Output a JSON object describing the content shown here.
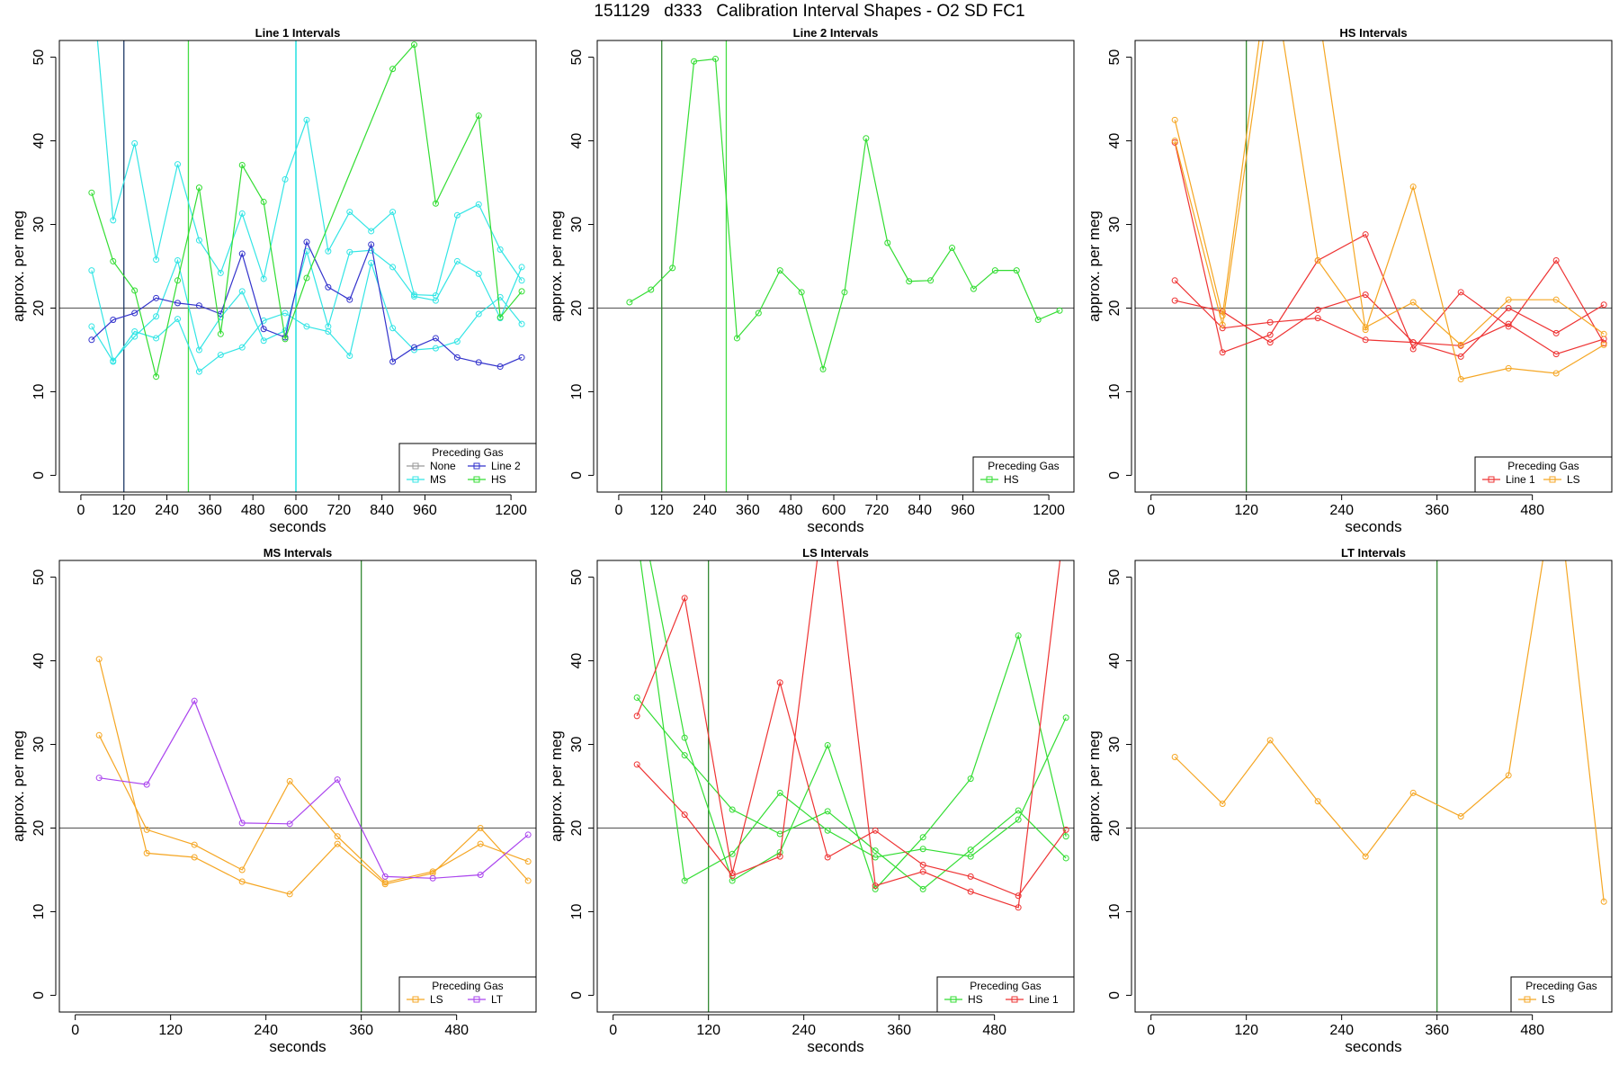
{
  "suptitle": "151129   d333   Calibration Interval Shapes - O2 SD FC1",
  "colors": {
    "None": "#999999",
    "Line 2": "#3333cc",
    "MS": "#33e5e5",
    "HS": "#33dd33",
    "Line 1": "#ee3333",
    "LS": "#f5a623",
    "LT": "#aa44ee",
    "vline_green": "#338833",
    "vline_navy": "#1f3a66",
    "vline_cyan": "#00dddd",
    "vline_lime": "#44dd44",
    "hline": "#666666"
  },
  "chart_data": [
    {
      "type": "line",
      "title": "Line 1 Intervals",
      "xlabel": "seconds",
      "ylabel": "approx. per meg",
      "xlim": [
        -60,
        1270
      ],
      "ylim": [
        -2,
        52
      ],
      "xticks": [
        0,
        120,
        240,
        360,
        480,
        600,
        720,
        840,
        960,
        1200
      ],
      "yticks": [
        0,
        10,
        20,
        30,
        40,
        50
      ],
      "hline": 20,
      "vlines": [
        {
          "x": 120,
          "color": "vline_navy"
        },
        {
          "x": 300,
          "color": "vline_lime"
        },
        {
          "x": 600,
          "color": "vline_cyan"
        }
      ],
      "legend": {
        "title": "Preceding Gas",
        "entries": [
          "None",
          "Line 2",
          "MS",
          "HS"
        ],
        "columns": 2,
        "placement": "bottom-right"
      },
      "series": [
        {
          "name": "MS",
          "x": [
            30,
            90,
            150,
            210,
            270,
            330,
            390,
            450,
            510,
            570,
            630,
            690,
            750,
            810,
            870,
            930,
            990,
            1050,
            1110,
            1170,
            1230
          ],
          "y": [
            60,
            30.5,
            39.7,
            25.8,
            37.2,
            28.1,
            24.2,
            31.3,
            23.5,
            35.4,
            42.5,
            26.8,
            31.5,
            29.2,
            31.5,
            21.6,
            21.5,
            31.1,
            32.4,
            27,
            23.3
          ]
        },
        {
          "name": "MS",
          "x": [
            30,
            90,
            150,
            210,
            270,
            330,
            390,
            450,
            510,
            570,
            630,
            690,
            750,
            810,
            870,
            930,
            990,
            1050,
            1110,
            1170,
            1230
          ],
          "y": [
            24.5,
            13.7,
            16.6,
            19,
            25.7,
            15,
            18.9,
            22,
            16.1,
            17.3,
            26.8,
            17.8,
            26.7,
            26.9,
            24.9,
            21.4,
            20.9,
            25.6,
            24.1,
            18.8,
            24.9
          ]
        },
        {
          "name": "MS",
          "x": [
            30,
            90,
            150,
            210,
            270,
            330,
            390,
            450,
            510,
            570,
            630,
            690,
            750,
            810,
            870,
            930,
            990,
            1050,
            1110,
            1170,
            1230
          ],
          "y": [
            17.8,
            13.6,
            17.2,
            16.4,
            18.7,
            12.4,
            14.4,
            15.3,
            18.5,
            19.4,
            17.8,
            17.2,
            14.3,
            25.4,
            17.6,
            15,
            15.2,
            16,
            19.3,
            21.3,
            18.1
          ]
        },
        {
          "name": "Line 2",
          "x": [
            30,
            90,
            150,
            210,
            270,
            330,
            390,
            450,
            510,
            570,
            630,
            690,
            750,
            810,
            870,
            930,
            990,
            1050,
            1110,
            1170,
            1230
          ],
          "y": [
            16.2,
            18.6,
            19.4,
            21.2,
            20.6,
            20.3,
            19.3,
            26.5,
            17.5,
            16.5,
            27.9,
            22.5,
            21,
            27.6,
            13.6,
            15.3,
            16.4,
            14.1,
            13.5,
            13,
            14.1
          ]
        },
        {
          "name": "HS",
          "x": [
            30,
            90,
            150,
            210,
            270,
            330,
            390,
            450,
            510,
            570,
            630,
            870,
            930,
            990,
            1110,
            1170,
            1230
          ],
          "y": [
            33.8,
            25.6,
            22.1,
            11.8,
            23.3,
            34.4,
            16.9,
            37.1,
            32.7,
            16.3,
            23.6,
            48.6,
            51.5,
            32.5,
            43,
            18.9,
            22
          ]
        }
      ]
    },
    {
      "type": "line",
      "title": "Line 2 Intervals",
      "xlabel": "seconds",
      "ylabel": "approx. per meg",
      "xlim": [
        -60,
        1270
      ],
      "ylim": [
        -2,
        52
      ],
      "xticks": [
        0,
        120,
        240,
        360,
        480,
        600,
        720,
        840,
        960,
        1200
      ],
      "yticks": [
        0,
        10,
        20,
        30,
        40,
        50
      ],
      "hline": 20,
      "vlines": [
        {
          "x": 120,
          "color": "vline_green"
        },
        {
          "x": 300,
          "color": "vline_lime"
        }
      ],
      "legend": {
        "title": "Preceding Gas",
        "entries": [
          "HS"
        ],
        "columns": 1,
        "placement": "bottom-right"
      },
      "series": [
        {
          "name": "HS",
          "x": [
            30,
            90,
            150,
            210,
            270,
            330,
            390,
            450,
            510,
            570,
            630,
            690,
            750,
            810,
            870,
            930,
            990,
            1050,
            1110,
            1170,
            1230
          ],
          "y": [
            20.7,
            22.2,
            24.8,
            49.5,
            49.8,
            16.4,
            19.4,
            24.5,
            21.9,
            12.7,
            21.9,
            40.3,
            27.8,
            23.2,
            23.3,
            27.2,
            22.3,
            24.5,
            24.5,
            18.6,
            19.7
          ]
        }
      ]
    },
    {
      "type": "line",
      "title": "HS Intervals",
      "xlabel": "seconds",
      "ylabel": "approx. per meg",
      "xlim": [
        -20,
        580
      ],
      "ylim": [
        -2,
        52
      ],
      "xticks": [
        0,
        120,
        240,
        360,
        480
      ],
      "yticks": [
        0,
        10,
        20,
        30,
        40,
        50
      ],
      "hline": 20,
      "vlines": [
        {
          "x": 120,
          "color": "vline_green"
        }
      ],
      "legend": {
        "title": "Preceding Gas",
        "entries": [
          "Line 1",
          "LS"
        ],
        "columns": 2,
        "placement": "bottom-right"
      },
      "series": [
        {
          "name": "Line 1",
          "x": [
            30,
            90,
            150,
            210,
            270,
            330,
            390,
            450,
            510,
            570
          ],
          "y": [
            39.8,
            14.7,
            16.8,
            25.7,
            28.8,
            15.1,
            21.9,
            17.8,
            25.7,
            15.8
          ]
        },
        {
          "name": "Line 1",
          "x": [
            30,
            90,
            150,
            210,
            270,
            330,
            390,
            450,
            510,
            570
          ],
          "y": [
            23.3,
            17.6,
            18.3,
            18.8,
            16.2,
            15.9,
            15.5,
            18.1,
            14.5,
            16.3
          ]
        },
        {
          "name": "Line 1",
          "x": [
            30,
            90,
            150,
            210,
            270,
            330,
            390,
            450,
            510,
            570
          ],
          "y": [
            20.9,
            19.6,
            15.9,
            19.8,
            21.6,
            15.9,
            14.2,
            20,
            17,
            20.4
          ]
        },
        {
          "name": "LS",
          "x": [
            30,
            90,
            150,
            210,
            270,
            330,
            390,
            450,
            510,
            570
          ],
          "y": [
            42.5,
            19.1,
            62,
            25.7,
            17.7,
            20.7,
            15.6,
            21,
            21,
            16.9
          ]
        },
        {
          "name": "LS",
          "x": [
            30,
            90,
            150,
            210,
            270,
            330,
            390,
            450,
            510,
            570
          ],
          "y": [
            40,
            18,
            58,
            56,
            17.4,
            34.5,
            11.5,
            12.8,
            12.2,
            15.6
          ]
        }
      ]
    },
    {
      "type": "line",
      "title": "MS Intervals",
      "xlabel": "seconds",
      "ylabel": "approx. per meg",
      "xlim": [
        -20,
        580
      ],
      "ylim": [
        -2,
        52
      ],
      "xticks": [
        0,
        120,
        240,
        360,
        480
      ],
      "yticks": [
        0,
        10,
        20,
        30,
        40,
        50
      ],
      "hline": 20,
      "vlines": [
        {
          "x": 360,
          "color": "vline_green"
        }
      ],
      "legend": {
        "title": "Preceding Gas",
        "entries": [
          "LS",
          "LT"
        ],
        "columns": 2,
        "placement": "bottom-right"
      },
      "series": [
        {
          "name": "LS",
          "x": [
            30,
            90,
            150,
            210,
            270,
            330,
            390,
            450,
            510,
            570
          ],
          "y": [
            40.2,
            17,
            16.5,
            13.6,
            12.1,
            18.1,
            13.3,
            14.6,
            20,
            13.7
          ]
        },
        {
          "name": "LS",
          "x": [
            30,
            90,
            150,
            210,
            270,
            330,
            390,
            450,
            510,
            570
          ],
          "y": [
            31.1,
            19.8,
            18,
            15,
            25.6,
            19,
            13.5,
            14.8,
            18.1,
            16
          ]
        },
        {
          "name": "LT",
          "x": [
            30,
            90,
            150,
            210,
            270,
            330,
            390,
            450,
            510,
            570
          ],
          "y": [
            26,
            25.2,
            35.2,
            20.6,
            20.5,
            25.8,
            14.2,
            14,
            14.4,
            19.2
          ]
        }
      ]
    },
    {
      "type": "line",
      "title": "LS Intervals",
      "xlabel": "seconds",
      "ylabel": "approx. per meg",
      "xlim": [
        -20,
        580
      ],
      "ylim": [
        -2,
        52
      ],
      "xticks": [
        0,
        120,
        240,
        360,
        480
      ],
      "yticks": [
        0,
        10,
        20,
        30,
        40,
        50
      ],
      "hline": 20,
      "vlines": [
        {
          "x": 120,
          "color": "vline_green"
        }
      ],
      "legend": {
        "title": "Preceding Gas",
        "entries": [
          "HS",
          "Line 1"
        ],
        "columns": 2,
        "placement": "bottom-right"
      },
      "series": [
        {
          "name": "HS",
          "x": [
            30,
            90,
            150,
            210,
            270,
            330,
            390,
            450,
            510,
            570
          ],
          "y": [
            60,
            30.8,
            13.7,
            17.1,
            29.9,
            12.7,
            18.9,
            25.9,
            43,
            19
          ]
        },
        {
          "name": "HS",
          "x": [
            30,
            90,
            150,
            210,
            270,
            330,
            390,
            450,
            510,
            570
          ],
          "y": [
            35.6,
            28.7,
            22.2,
            19.3,
            22,
            17.3,
            12.7,
            17.4,
            22.1,
            16.4
          ]
        },
        {
          "name": "HS",
          "x": [
            30,
            90,
            150,
            210,
            270,
            330,
            390,
            450,
            510,
            570
          ],
          "y": [
            55,
            13.7,
            16.9,
            24.2,
            19.7,
            16.5,
            17.5,
            16.6,
            21,
            33.2
          ]
        },
        {
          "name": "Line 1",
          "x": [
            30,
            90,
            150,
            210,
            270,
            330,
            390,
            450,
            510,
            570
          ],
          "y": [
            33.4,
            47.5,
            14.6,
            37.4,
            16.5,
            19.7,
            15.6,
            14.2,
            11.9,
            19.8
          ]
        },
        {
          "name": "Line 1",
          "x": [
            30,
            90,
            150,
            210,
            270,
            330,
            390,
            450,
            510,
            570
          ],
          "y": [
            27.6,
            21.6,
            14.3,
            16.6,
            62,
            13.1,
            14.8,
            12.4,
            10.5,
            58
          ]
        }
      ]
    },
    {
      "type": "line",
      "title": "LT Intervals",
      "xlabel": "seconds",
      "ylabel": "approx. per meg",
      "xlim": [
        -20,
        580
      ],
      "ylim": [
        -2,
        52
      ],
      "xticks": [
        0,
        120,
        240,
        360,
        480
      ],
      "yticks": [
        0,
        10,
        20,
        30,
        40,
        50
      ],
      "hline": 20,
      "vlines": [
        {
          "x": 360,
          "color": "vline_green"
        }
      ],
      "legend": {
        "title": "Preceding Gas",
        "entries": [
          "LS"
        ],
        "columns": 1,
        "placement": "bottom-right"
      },
      "series": [
        {
          "name": "LS",
          "x": [
            30,
            90,
            150,
            210,
            270,
            330,
            390,
            450,
            510,
            570
          ],
          "y": [
            28.5,
            22.9,
            30.5,
            23.2,
            16.6,
            24.2,
            21.4,
            26.3,
            62,
            11.2
          ]
        }
      ]
    }
  ]
}
